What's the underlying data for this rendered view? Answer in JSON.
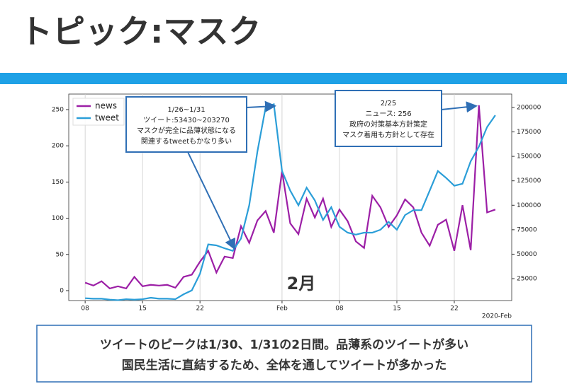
{
  "header": {
    "title": "トピック:マスク"
  },
  "chart_data": {
    "type": "line",
    "x": [
      "2020-01-08",
      "2020-01-09",
      "2020-01-10",
      "2020-01-11",
      "2020-01-12",
      "2020-01-13",
      "2020-01-14",
      "2020-01-15",
      "2020-01-16",
      "2020-01-17",
      "2020-01-18",
      "2020-01-19",
      "2020-01-20",
      "2020-01-21",
      "2020-01-22",
      "2020-01-23",
      "2020-01-24",
      "2020-01-25",
      "2020-01-26",
      "2020-01-27",
      "2020-01-28",
      "2020-01-29",
      "2020-01-30",
      "2020-01-31",
      "2020-02-01",
      "2020-02-02",
      "2020-02-03",
      "2020-02-04",
      "2020-02-05",
      "2020-02-06",
      "2020-02-07",
      "2020-02-08",
      "2020-02-09",
      "2020-02-10",
      "2020-02-11",
      "2020-02-12",
      "2020-02-13",
      "2020-02-14",
      "2020-02-15",
      "2020-02-16",
      "2020-02-17",
      "2020-02-18",
      "2020-02-19",
      "2020-02-20",
      "2020-02-21",
      "2020-02-22",
      "2020-02-23",
      "2020-02-24",
      "2020-02-25",
      "2020-02-26",
      "2020-02-27"
    ],
    "series": [
      {
        "name": "news",
        "color": "#9c1fa6",
        "values": [
          11,
          7,
          13,
          3,
          6,
          3,
          19,
          6,
          8,
          7,
          8,
          4,
          19,
          22,
          40,
          55,
          25,
          47,
          45,
          89,
          66,
          97,
          110,
          80,
          165,
          93,
          78,
          127,
          101,
          127,
          88,
          112,
          96,
          68,
          59,
          131,
          115,
          88,
          104,
          126,
          115,
          80,
          62,
          91,
          98,
          55,
          118,
          56,
          256,
          108,
          112
        ]
      },
      {
        "name": "tweet",
        "color": "#2b9ed8",
        "axis": "y2",
        "values": [
          5000,
          4500,
          4500,
          3500,
          3000,
          4000,
          3500,
          4000,
          5500,
          4500,
          4500,
          4000,
          9000,
          13000,
          30000,
          60000,
          59000,
          56000,
          53430,
          66000,
          100000,
          155000,
          200000,
          203270,
          135000,
          115000,
          100000,
          118000,
          105000,
          85000,
          98000,
          78000,
          72000,
          70000,
          72000,
          72000,
          75000,
          83000,
          75000,
          90000,
          95000,
          95000,
          115000,
          135000,
          128000,
          120000,
          122000,
          145000,
          160000,
          180000,
          192000
        ]
      }
    ],
    "xlim": [
      "2020-01-06",
      "2020-02-29"
    ],
    "xticks": [
      {
        "value": "2020-01-08",
        "label": "08"
      },
      {
        "value": "2020-01-15",
        "label": "15"
      },
      {
        "value": "2020-01-22",
        "label": "22"
      },
      {
        "value": "2020-02-01",
        "label": "Feb"
      },
      {
        "value": "2020-02-08",
        "label": "08"
      },
      {
        "value": "2020-02-15",
        "label": "15"
      },
      {
        "value": "2020-02-22",
        "label": "22"
      }
    ],
    "x_offset_label": "2020-Feb",
    "ylim": [
      -13.7,
      271.5
    ],
    "yticks": [
      0,
      50,
      100,
      150,
      200,
      250
    ],
    "y2lim": [
      2600,
      213700
    ],
    "y2ticks": [
      25000,
      50000,
      75000,
      100000,
      125000,
      150000,
      175000,
      200000
    ],
    "grid": "x",
    "legend": "upper left",
    "annotations": [
      {
        "lines": [
          "1/26~1/31",
          "ツイート:53430~203270",
          "マスクが完全に品薄状態になる",
          "関連するtweetもかなり多い"
        ]
      },
      {
        "lines": [
          "2/25",
          "ニュース: 256",
          "政府の対策基本方針策定",
          "マスク着用も方針として存在"
        ]
      },
      {
        "text": "2月"
      }
    ]
  },
  "summary": {
    "lines": [
      "ツイートのピークは1/30、1/31の2日間。品薄系のツイートが多い",
      "国民生活に直結するため、全体を通してツイートが多かった"
    ]
  }
}
